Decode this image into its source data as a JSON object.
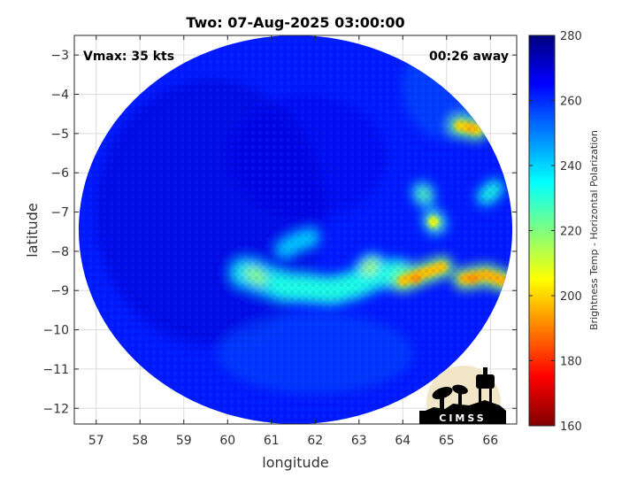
{
  "title": "Two: 07-Aug-2025 03:00:00",
  "annotations": {
    "vmax": "Vmax: 35 kts",
    "time_away": "00:26 away"
  },
  "axes": {
    "xlabel": "longitude",
    "ylabel": "latitude",
    "xlim": [
      56.5,
      66.6
    ],
    "ylim": [
      -12.4,
      -2.5
    ],
    "xticks": [
      57,
      58,
      59,
      60,
      61,
      62,
      63,
      64,
      65,
      66
    ],
    "yticks": [
      -3,
      -4,
      -5,
      -6,
      -7,
      -8,
      -9,
      -10,
      -11,
      -12
    ],
    "grid": true
  },
  "swath": {
    "center": [
      61.55,
      -7.45
    ],
    "radius_lon": 4.95,
    "radius_lat": 4.95,
    "background_value": 262
  },
  "features": [
    {
      "name": "main-band",
      "points": [
        [
          60.4,
          -8.55
        ],
        [
          60.8,
          -8.7
        ],
        [
          61.3,
          -8.9
        ],
        [
          61.9,
          -8.95
        ],
        [
          62.4,
          -9.0
        ],
        [
          62.9,
          -8.85
        ],
        [
          63.4,
          -8.6
        ],
        [
          63.9,
          -8.55
        ]
      ],
      "value": 232
    },
    {
      "name": "band-head",
      "points": [
        [
          60.55,
          -8.55
        ],
        [
          60.75,
          -8.7
        ]
      ],
      "value": 218
    },
    {
      "name": "convection-east-1",
      "points": [
        [
          64.0,
          -8.75
        ],
        [
          64.5,
          -8.55
        ],
        [
          64.9,
          -8.4
        ]
      ],
      "value": 198
    },
    {
      "name": "convection-east-2",
      "points": [
        [
          65.4,
          -8.7
        ],
        [
          65.9,
          -8.6
        ],
        [
          66.3,
          -8.75
        ]
      ],
      "value": 196
    },
    {
      "name": "convection-ne",
      "points": [
        [
          65.3,
          -4.8
        ],
        [
          65.7,
          -4.9
        ]
      ],
      "value": 200
    },
    {
      "name": "cell-1",
      "points": [
        [
          64.45,
          -6.5
        ],
        [
          64.5,
          -6.6
        ]
      ],
      "value": 225
    },
    {
      "name": "cell-2",
      "points": [
        [
          64.7,
          -7.2
        ],
        [
          64.75,
          -7.3
        ]
      ],
      "value": 222
    },
    {
      "name": "cell-3",
      "points": [
        [
          65.9,
          -6.6
        ],
        [
          66.1,
          -6.4
        ]
      ],
      "value": 232
    },
    {
      "name": "cell-4",
      "points": [
        [
          63.2,
          -8.45
        ],
        [
          63.3,
          -8.35
        ]
      ],
      "value": 215
    },
    {
      "name": "hook-arm",
      "points": [
        [
          61.3,
          -7.95
        ],
        [
          61.6,
          -7.75
        ],
        [
          61.9,
          -7.65
        ]
      ],
      "value": 240
    }
  ],
  "colorbar": {
    "label": "Brightness Temp - Horizontal Polarization",
    "min": 160,
    "max": 280,
    "ticks": [
      280,
      260,
      240,
      220,
      200,
      180,
      160
    ],
    "colormap": [
      "#800000",
      "#ff0000",
      "#ffff00",
      "#00ffff",
      "#0000ff",
      "#000080"
    ]
  },
  "logo": {
    "text": "CIMSS"
  }
}
